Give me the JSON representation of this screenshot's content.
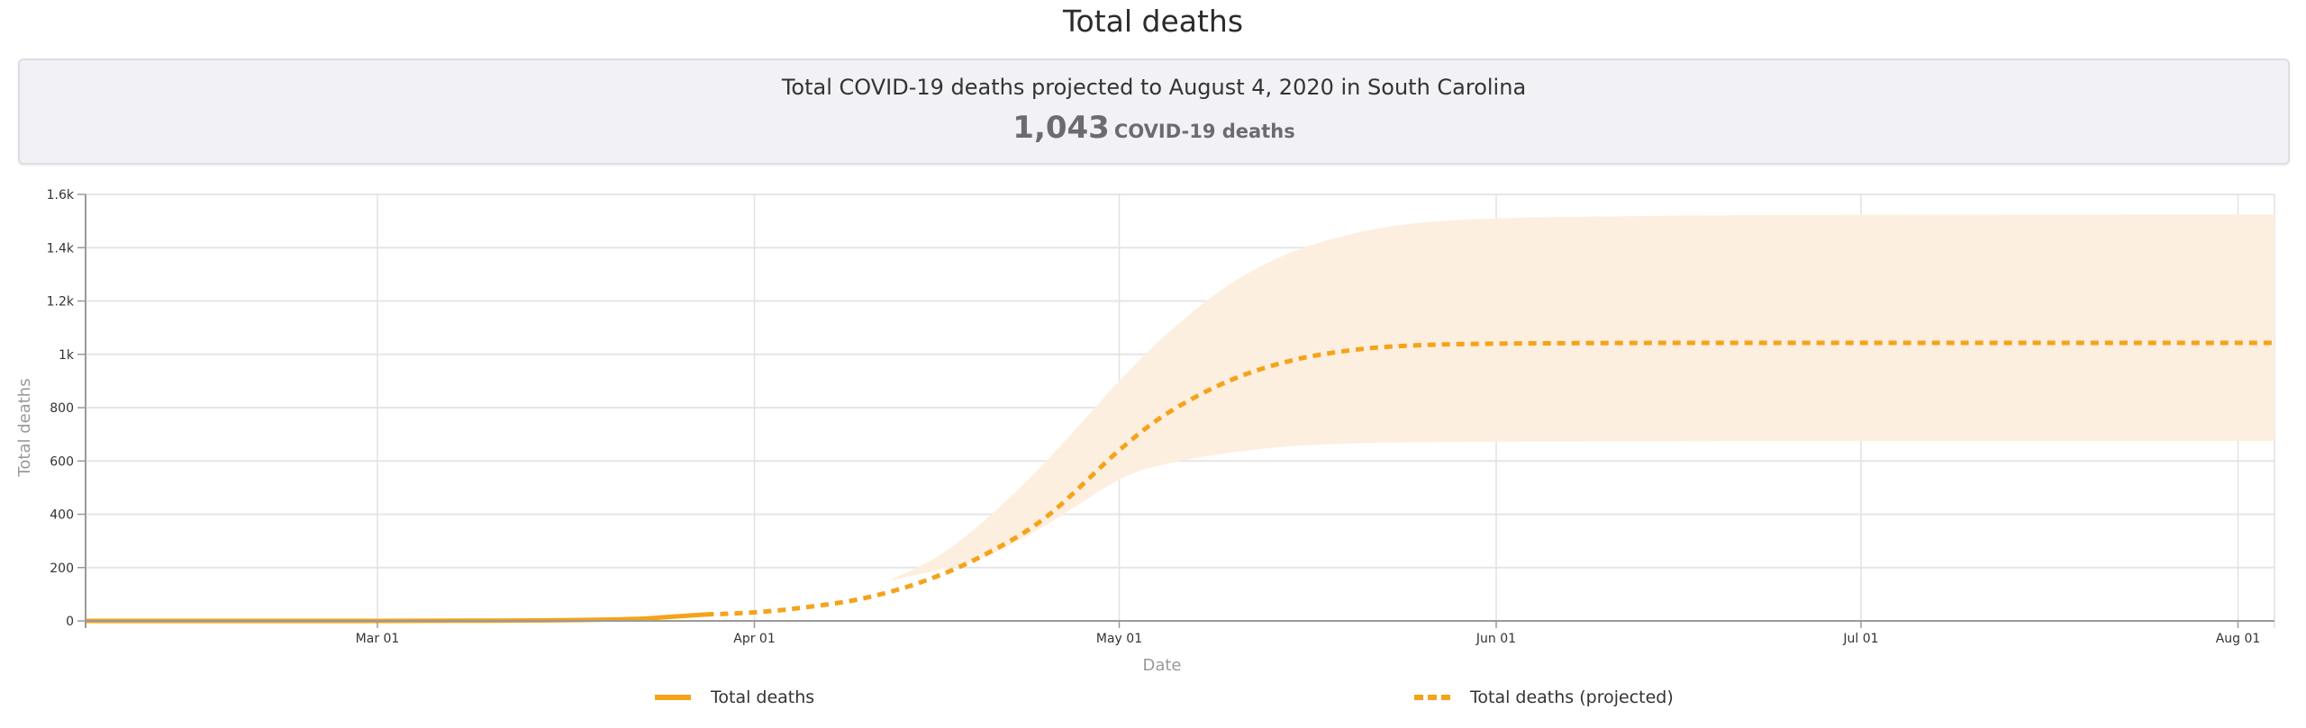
{
  "title": "Total deaths",
  "summary": {
    "headline": "Total COVID-19 deaths projected to August 4, 2020 in South Carolina",
    "value": "1,043",
    "unit": "COVID-19 deaths"
  },
  "colors": {
    "line": "#f5a31a",
    "band": "#fdefdf",
    "grid": "#e6e6e6",
    "axis": "#9a9a9a"
  },
  "chart_data": {
    "type": "line",
    "title": "Total deaths",
    "xlabel": "Date",
    "ylabel": "Total deaths",
    "xlim": [
      "2020-02-06",
      "2020-08-04"
    ],
    "ylim": [
      0,
      1600
    ],
    "grid": true,
    "legend_position": "bottom",
    "y_ticks": [
      {
        "value": 0,
        "label": "0"
      },
      {
        "value": 200,
        "label": "200"
      },
      {
        "value": 400,
        "label": "400"
      },
      {
        "value": 600,
        "label": "600"
      },
      {
        "value": 800,
        "label": "800"
      },
      {
        "value": 1000,
        "label": "1k"
      },
      {
        "value": 1200,
        "label": "1.2k"
      },
      {
        "value": 1400,
        "label": "1.4k"
      },
      {
        "value": 1600,
        "label": "1.6k"
      }
    ],
    "x_ticks": [
      {
        "date": "2020-03-01",
        "label": "Mar 01"
      },
      {
        "date": "2020-04-01",
        "label": "Apr 01"
      },
      {
        "date": "2020-05-01",
        "label": "May 01"
      },
      {
        "date": "2020-06-01",
        "label": "Jun 01"
      },
      {
        "date": "2020-07-01",
        "label": "Jul 01"
      },
      {
        "date": "2020-08-01",
        "label": "Aug 01"
      }
    ],
    "series": [
      {
        "name": "Total deaths",
        "style": "solid",
        "x": [
          "2020-02-06",
          "2020-03-01",
          "2020-03-10",
          "2020-03-15",
          "2020-03-20",
          "2020-03-23",
          "2020-03-25",
          "2020-03-28"
        ],
        "values": [
          0,
          0,
          1,
          2,
          5,
          9,
          15,
          24
        ]
      },
      {
        "name": "Total deaths (projected)",
        "style": "dashed",
        "x": [
          "2020-03-28",
          "2020-04-01",
          "2020-04-05",
          "2020-04-10",
          "2020-04-15",
          "2020-04-20",
          "2020-04-25",
          "2020-05-01",
          "2020-05-05",
          "2020-05-10",
          "2020-05-15",
          "2020-05-20",
          "2020-05-25",
          "2020-06-01",
          "2020-06-15",
          "2020-07-01",
          "2020-08-04"
        ],
        "values": [
          24,
          32,
          50,
          85,
          150,
          250,
          390,
          640,
          780,
          900,
          975,
          1015,
          1033,
          1040,
          1043,
          1043,
          1043
        ]
      }
    ],
    "band": {
      "name": "Projection uncertainty",
      "x": [
        "2020-04-12",
        "2020-04-16",
        "2020-04-20",
        "2020-04-25",
        "2020-05-01",
        "2020-05-05",
        "2020-05-10",
        "2020-05-15",
        "2020-05-20",
        "2020-05-25",
        "2020-06-01",
        "2020-06-15",
        "2020-07-01",
        "2020-08-04"
      ],
      "upper": [
        150,
        240,
        380,
        600,
        900,
        1080,
        1260,
        1380,
        1450,
        1490,
        1510,
        1520,
        1523,
        1525
      ],
      "lower": [
        150,
        190,
        240,
        360,
        530,
        590,
        630,
        655,
        665,
        670,
        672,
        674,
        675,
        675
      ]
    }
  }
}
